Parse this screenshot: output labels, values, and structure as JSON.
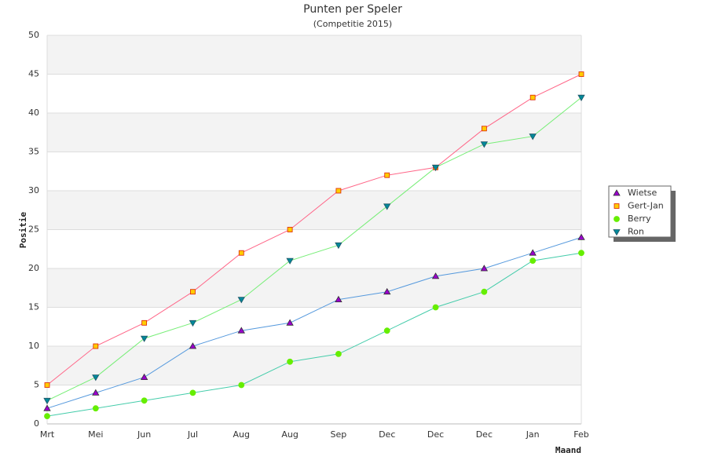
{
  "chart_data": {
    "type": "line",
    "title": "Punten per Speler",
    "subtitle": "(Competitie 2015)",
    "x_label": "Maand",
    "y_label": "Positie",
    "categories": [
      "Mrt",
      "Mei",
      "Jun",
      "Jul",
      "Aug",
      "Aug",
      "Sep",
      "Dec",
      "Dec",
      "Dec",
      "Jan",
      "Feb"
    ],
    "series": [
      {
        "name": "Wietse",
        "color": "#5599dd",
        "marker": "triangle",
        "marker_color": "#9900cc",
        "values": [
          2,
          4,
          6,
          10,
          12,
          13,
          16,
          17,
          19,
          20,
          22,
          24
        ]
      },
      {
        "name": "Gert-Jan",
        "color": "#ff6688",
        "marker": "square",
        "marker_color": "#ffcc00",
        "values": [
          5,
          10,
          13,
          17,
          22,
          25,
          30,
          32,
          33,
          38,
          42,
          45
        ]
      },
      {
        "name": "Berry",
        "color": "#44ccaa",
        "marker": "circle",
        "marker_color": "#66ee00",
        "values": [
          1,
          2,
          3,
          4,
          5,
          8,
          9,
          12,
          15,
          17,
          21,
          22
        ]
      },
      {
        "name": "Ron",
        "color": "#77ee77",
        "marker": "down-triangle",
        "marker_color": "#008899",
        "values": [
          3,
          6,
          11,
          13,
          16,
          21,
          23,
          28,
          33,
          36,
          37,
          42
        ]
      }
    ],
    "ylim": [
      0,
      50
    ],
    "yticks": [
      0,
      5,
      10,
      15,
      20,
      25,
      30,
      35,
      40,
      45,
      50
    ],
    "grid": true,
    "band_color": "#f3f3f3",
    "legend": "right"
  }
}
